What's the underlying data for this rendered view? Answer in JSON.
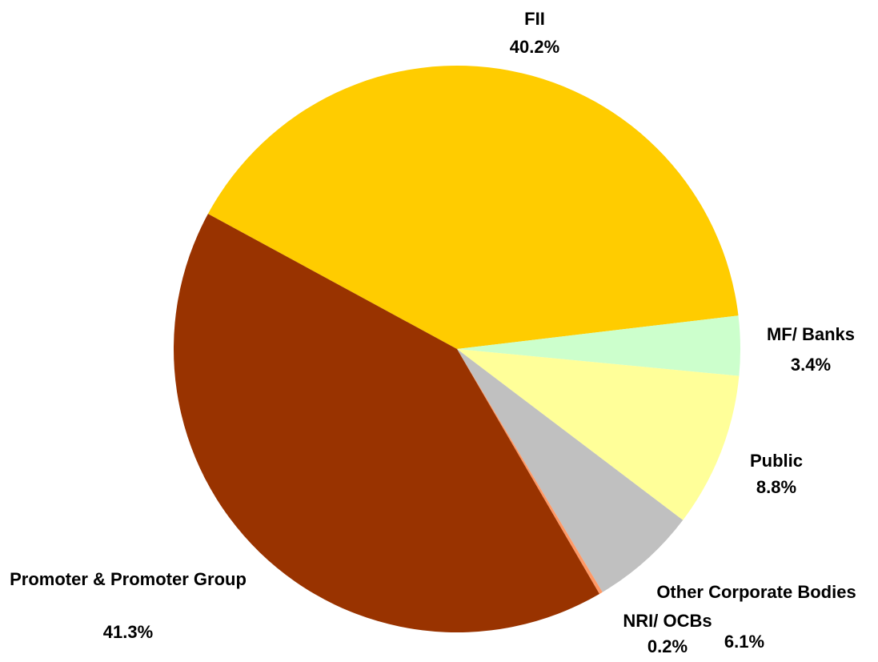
{
  "chart_data": {
    "type": "pie",
    "categories": [
      "FII",
      "MF/ Banks",
      "Public",
      "Other Corporate Bodies",
      "NRI/ OCBs",
      "Promoter & Promoter Group"
    ],
    "values": [
      40.2,
      3.4,
      8.8,
      6.1,
      0.2,
      41.3
    ],
    "value_labels": [
      "40.2%",
      "3.4%",
      "8.8%",
      "6.1%",
      "0.2%",
      "41.3%"
    ],
    "colors": [
      "#ffcc00",
      "#ccffcc",
      "#ffff99",
      "#c0c0c0",
      "#ff9966",
      "#993300"
    ]
  }
}
